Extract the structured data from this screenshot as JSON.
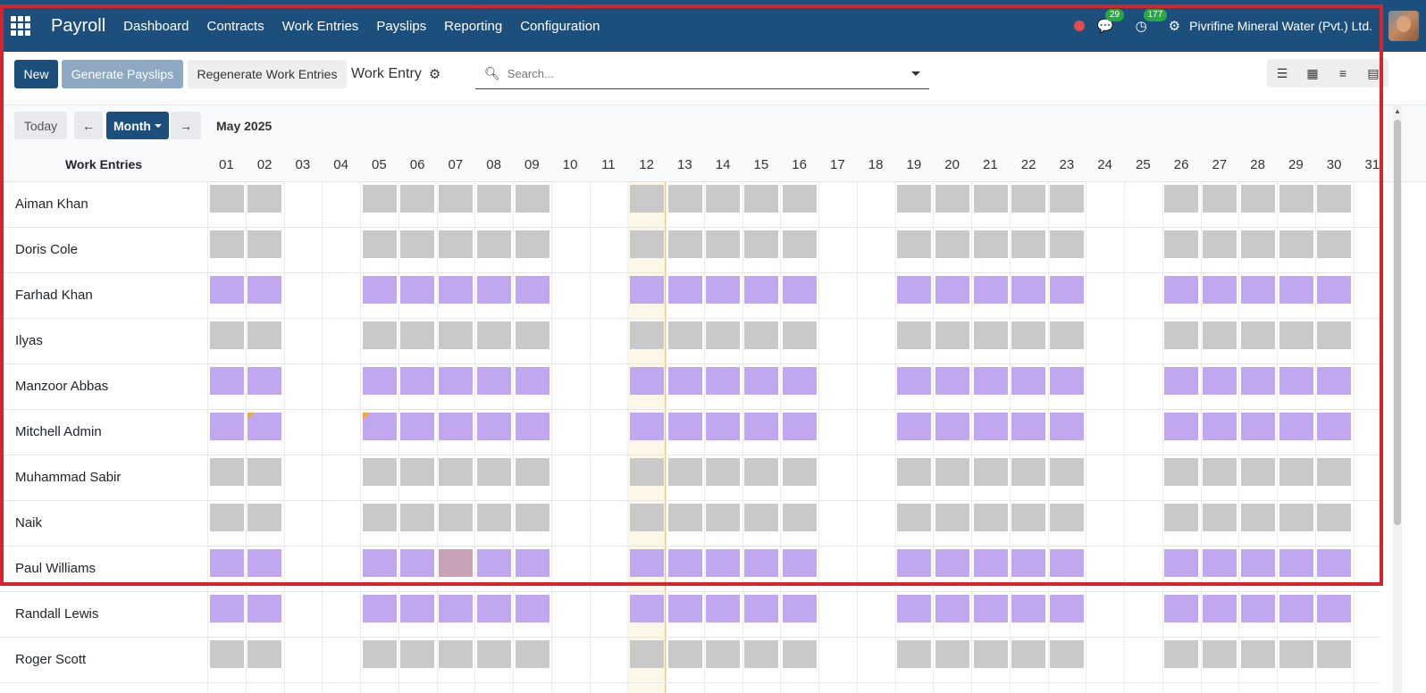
{
  "navbar": {
    "brand": "Payroll",
    "menu": [
      "Dashboard",
      "Contracts",
      "Work Entries",
      "Payslips",
      "Reporting",
      "Configuration"
    ],
    "messages_count": "29",
    "activities_count": "177",
    "company": "Pivrifine Mineral Water (Pvt.) Ltd."
  },
  "control_panel": {
    "new_label": "New",
    "generate_label": "Generate Payslips",
    "regenerate_label": "Regenerate Work Entries",
    "breadcrumb": "Work Entry",
    "search_placeholder": "Search..."
  },
  "calendar_controls": {
    "today_label": "Today",
    "scale_label": "Month",
    "period": "May 2025",
    "prev_icon": "arrow-left-icon",
    "next_icon": "arrow-right-icon"
  },
  "grid": {
    "header_title": "Work Entries",
    "days": [
      "01",
      "02",
      "03",
      "04",
      "05",
      "06",
      "07",
      "08",
      "09",
      "10",
      "11",
      "12",
      "13",
      "14",
      "15",
      "16",
      "17",
      "18",
      "19",
      "20",
      "21",
      "22",
      "23",
      "24",
      "25",
      "26",
      "27",
      "28",
      "29",
      "30",
      "31"
    ],
    "today_day": "12",
    "working_days": [
      "01",
      "02",
      "05",
      "06",
      "07",
      "08",
      "09",
      "12",
      "13",
      "14",
      "15",
      "16",
      "19",
      "20",
      "21",
      "22",
      "23",
      "26",
      "27",
      "28",
      "29",
      "30"
    ],
    "employees": [
      {
        "name": "Aiman Khan",
        "type": "gray"
      },
      {
        "name": "Doris Cole",
        "type": "gray"
      },
      {
        "name": "Farhad Khan",
        "type": "purple"
      },
      {
        "name": "Ilyas",
        "type": "gray"
      },
      {
        "name": "Manzoor Abbas",
        "type": "purple"
      },
      {
        "name": "Mitchell Admin",
        "type": "purple",
        "flag_days": [
          "02",
          "05"
        ]
      },
      {
        "name": "Muhammad Sabir",
        "type": "gray"
      },
      {
        "name": "Naik",
        "type": "gray"
      },
      {
        "name": "Paul Williams",
        "type": "purple",
        "special_days": {
          "07": "rose"
        }
      },
      {
        "name": "Randall Lewis",
        "type": "purple"
      },
      {
        "name": "Roger Scott",
        "type": "gray"
      }
    ]
  },
  "colors": {
    "navbar": "#1c4f7c",
    "entry_gray": "#c9c9c9",
    "entry_purple": "#c1a7ef",
    "entry_rose": "#caa2b8",
    "highlight": "#d7232b",
    "today_bg": "#fdf7e8"
  }
}
